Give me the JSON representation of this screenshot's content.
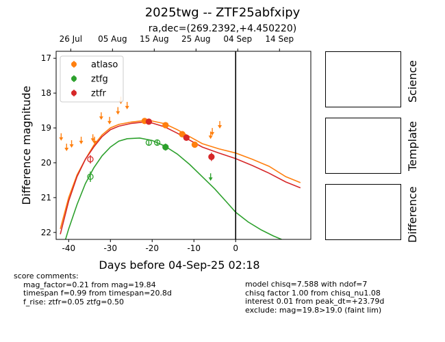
{
  "header": {
    "title": "2025twg -- ZTF25abfxipy",
    "subtitle": "ra,dec=(269.2392,+4.450220)"
  },
  "panels": [
    {
      "label": "Science"
    },
    {
      "label": "Template"
    },
    {
      "label": "Difference"
    }
  ],
  "comments_left": {
    "heading": "score comments:",
    "lines": [
      "mag_factor=0.21 from mag=19.84",
      "timespan f=0.99 from timespan=20.8d",
      "f_rise: ztfr=0.05 ztfg=0.50"
    ]
  },
  "comments_right": {
    "lines": [
      "model chisq=7.588 with ndof=7",
      "chisq factor 1.00 from chisq_nu1.08",
      "interest 0.01 from peak_dt=+23.79d",
      "exclude: mag=19.8>19.0 (faint lim)"
    ]
  },
  "chart_data": {
    "type": "scatter",
    "xlabel": "Days before 04-Sep-25 02:18",
    "ylabel": "Difference magnitude",
    "xlim": [
      -43,
      18
    ],
    "ylim": [
      22.2,
      16.8
    ],
    "y_inverted": true,
    "x_ticks": [
      -40,
      -30,
      -20,
      -10,
      0
    ],
    "y_ticks": [
      17,
      18,
      19,
      20,
      21,
      22
    ],
    "top_axis_ticks": [
      {
        "x": -39.5,
        "label": "26 Jul"
      },
      {
        "x": -29.5,
        "label": "05 Aug"
      },
      {
        "x": -19.5,
        "label": "15 Aug"
      },
      {
        "x": -9.5,
        "label": "25 Aug"
      },
      {
        "x": 0.5,
        "label": "04 Sep"
      },
      {
        "x": 10.5,
        "label": "14 Sep"
      }
    ],
    "vline_x": 0,
    "legend": {
      "position": "upper-left",
      "entries": [
        "atlaso",
        "ztfg",
        "ztfr"
      ]
    },
    "colors": {
      "atlaso": "#ff7f0e",
      "ztfg": "#2ca02c",
      "ztfr": "#d62728"
    },
    "series": [
      {
        "name": "atlaso",
        "detections": [
          {
            "x": -21.8,
            "y": 18.8,
            "err": 0.05
          },
          {
            "x": -16.8,
            "y": 18.92,
            "err": 0.06
          },
          {
            "x": -12.8,
            "y": 19.18,
            "err": 0.07
          },
          {
            "x": -9.8,
            "y": 19.48,
            "err": 0.08
          }
        ],
        "upper_limits": [
          {
            "x": -41.8,
            "y": 19.25
          },
          {
            "x": -40.5,
            "y": 19.55
          },
          {
            "x": -39.3,
            "y": 19.45
          },
          {
            "x": -37.0,
            "y": 19.35
          },
          {
            "x": -34.2,
            "y": 19.28
          },
          {
            "x": -33.8,
            "y": 19.35
          },
          {
            "x": -32.2,
            "y": 18.65
          },
          {
            "x": -30.2,
            "y": 18.78
          },
          {
            "x": -28.2,
            "y": 18.5
          },
          {
            "x": -27.5,
            "y": 18.2
          },
          {
            "x": -26.0,
            "y": 18.35
          },
          {
            "x": -6.0,
            "y": 19.2
          },
          {
            "x": -5.6,
            "y": 19.1
          },
          {
            "x": -3.8,
            "y": 18.9
          }
        ],
        "model": [
          {
            "x": -42,
            "y": 21.9
          },
          {
            "x": -40,
            "y": 21.0
          },
          {
            "x": -38,
            "y": 20.35
          },
          {
            "x": -36,
            "y": 19.9
          },
          {
            "x": -34,
            "y": 19.5
          },
          {
            "x": -32,
            "y": 19.2
          },
          {
            "x": -30,
            "y": 19.0
          },
          {
            "x": -28,
            "y": 18.9
          },
          {
            "x": -25,
            "y": 18.83
          },
          {
            "x": -22,
            "y": 18.79
          },
          {
            "x": -20,
            "y": 18.8
          },
          {
            "x": -17,
            "y": 18.88
          },
          {
            "x": -14,
            "y": 19.05
          },
          {
            "x": -11,
            "y": 19.25
          },
          {
            "x": -8,
            "y": 19.45
          },
          {
            "x": -4,
            "y": 19.6
          },
          {
            "x": 0,
            "y": 19.72
          },
          {
            "x": 4,
            "y": 19.9
          },
          {
            "x": 8,
            "y": 20.1
          },
          {
            "x": 12,
            "y": 20.4
          },
          {
            "x": 15.5,
            "y": 20.57
          }
        ]
      },
      {
        "name": "ztfg",
        "detections": [
          {
            "x": -34.8,
            "y": 20.4,
            "err": 0.15,
            "hollow": true
          },
          {
            "x": -20.8,
            "y": 19.42,
            "err": 0.08,
            "hollow": true
          },
          {
            "x": -18.8,
            "y": 19.42,
            "err": 0.08,
            "hollow": true
          },
          {
            "x": -16.8,
            "y": 19.55,
            "err": 0.1,
            "hollow": false
          }
        ],
        "upper_limits": [
          {
            "x": -6.0,
            "y": 20.4
          }
        ],
        "model": [
          {
            "x": -42,
            "y": 22.7
          },
          {
            "x": -40,
            "y": 21.9
          },
          {
            "x": -38,
            "y": 21.2
          },
          {
            "x": -36,
            "y": 20.6
          },
          {
            "x": -34,
            "y": 20.15
          },
          {
            "x": -32,
            "y": 19.8
          },
          {
            "x": -30,
            "y": 19.55
          },
          {
            "x": -28,
            "y": 19.38
          },
          {
            "x": -26,
            "y": 19.31
          },
          {
            "x": -23,
            "y": 19.29
          },
          {
            "x": -20,
            "y": 19.36
          },
          {
            "x": -17,
            "y": 19.52
          },
          {
            "x": -14,
            "y": 19.75
          },
          {
            "x": -11,
            "y": 20.05
          },
          {
            "x": -8,
            "y": 20.4
          },
          {
            "x": -5,
            "y": 20.75
          },
          {
            "x": -2,
            "y": 21.15
          },
          {
            "x": 0,
            "y": 21.42
          },
          {
            "x": 3,
            "y": 21.7
          },
          {
            "x": 6,
            "y": 21.92
          },
          {
            "x": 9,
            "y": 22.1
          },
          {
            "x": 11,
            "y": 22.2
          }
        ]
      },
      {
        "name": "ztfr",
        "detections": [
          {
            "x": -34.8,
            "y": 19.9,
            "err": 0.12,
            "hollow": true
          },
          {
            "x": -20.8,
            "y": 18.82,
            "err": 0.05,
            "hollow": false
          },
          {
            "x": -11.8,
            "y": 19.28,
            "err": 0.06,
            "hollow": false
          },
          {
            "x": -5.8,
            "y": 19.83,
            "err": 0.12,
            "hollow": false
          }
        ],
        "upper_limits": [],
        "model": [
          {
            "x": -42,
            "y": 22.05
          },
          {
            "x": -40,
            "y": 21.1
          },
          {
            "x": -38,
            "y": 20.4
          },
          {
            "x": -36,
            "y": 19.9
          },
          {
            "x": -34,
            "y": 19.55
          },
          {
            "x": -32,
            "y": 19.25
          },
          {
            "x": -30,
            "y": 19.05
          },
          {
            "x": -28,
            "y": 18.95
          },
          {
            "x": -25,
            "y": 18.87
          },
          {
            "x": -22,
            "y": 18.83
          },
          {
            "x": -20,
            "y": 18.86
          },
          {
            "x": -17,
            "y": 18.97
          },
          {
            "x": -14,
            "y": 19.15
          },
          {
            "x": -11,
            "y": 19.35
          },
          {
            "x": -8,
            "y": 19.55
          },
          {
            "x": -4,
            "y": 19.72
          },
          {
            "x": 0,
            "y": 19.88
          },
          {
            "x": 4,
            "y": 20.08
          },
          {
            "x": 8,
            "y": 20.3
          },
          {
            "x": 12,
            "y": 20.55
          },
          {
            "x": 15.5,
            "y": 20.72
          }
        ]
      }
    ]
  }
}
